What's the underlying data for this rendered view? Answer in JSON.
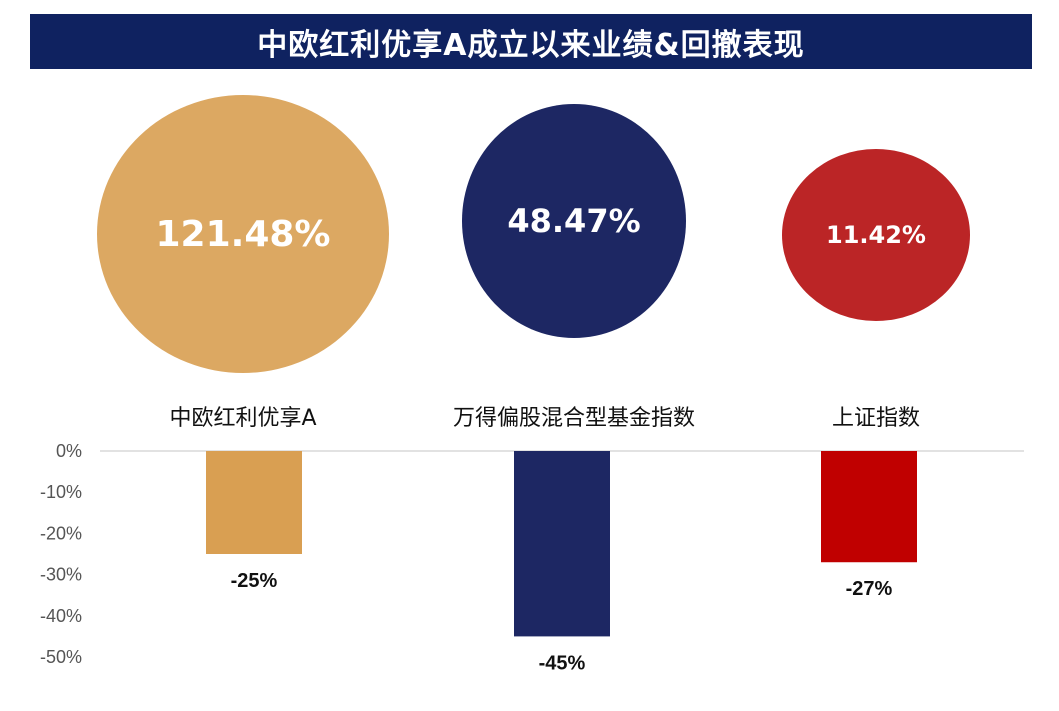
{
  "title": "中欧红利优享A成立以来业绩&回撤表现",
  "chart_data": [
    {
      "type": "scatter",
      "description_of_values": "since-inception return",
      "categories": [
        "中欧红利优享A",
        "万得偏股混合型基金指数",
        "上证指数"
      ],
      "values": [
        121.48,
        48.47,
        11.42
      ],
      "value_labels": [
        "121.48%",
        "48.47%",
        "11.42%"
      ],
      "colors": [
        "#dca862",
        "#1d2763",
        "#bb2526"
      ]
    },
    {
      "type": "bar",
      "categories": [
        "中欧红利优享A",
        "万得偏股混合型基金指数",
        "上证指数"
      ],
      "values": [
        -25,
        -45,
        -27
      ],
      "value_labels": [
        "-25%",
        "-45%",
        "-27%"
      ],
      "colors": [
        "#d99f52",
        "#1d2763",
        "#c00000"
      ],
      "ylim": [
        -50,
        0
      ],
      "yticks": [
        0,
        -10,
        -20,
        -30,
        -40,
        -50
      ],
      "ytick_labels": [
        "0%",
        "-10%",
        "-20%",
        "-30%",
        "-40%",
        "-50%"
      ]
    }
  ]
}
